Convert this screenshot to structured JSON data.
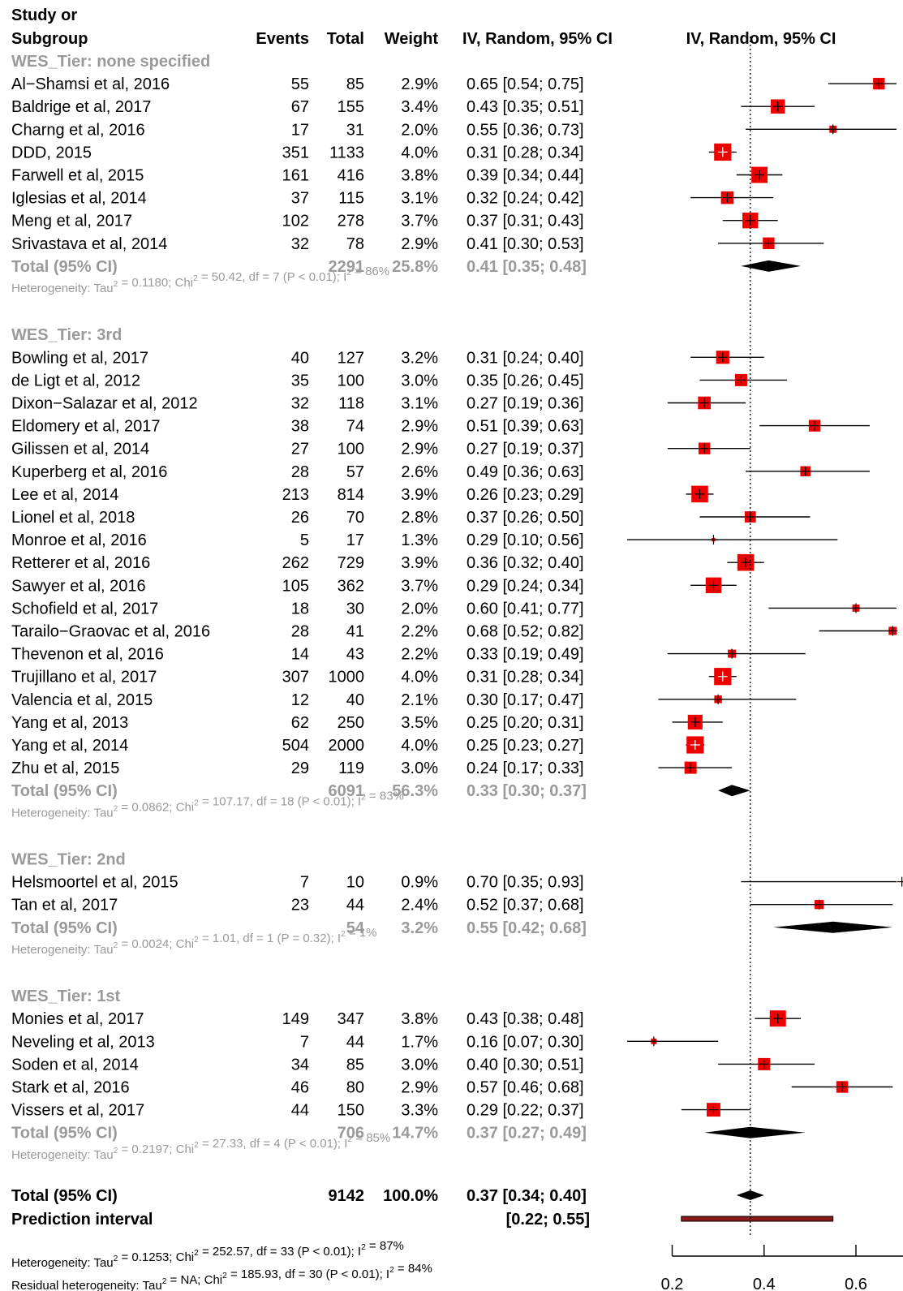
{
  "header": {
    "study_line1": "Study or",
    "study_line2": "Subgroup",
    "events": "Events",
    "total": "Total",
    "weight": "Weight",
    "ci": "IV, Random, 95% CI",
    "plot_ci": "IV, Random, 95% CI"
  },
  "colors": {
    "box": "#ee0000",
    "diamond": "#000000",
    "prediction": "#8b1a1a",
    "gray": "#9a9a9a"
  },
  "chart_data": {
    "type": "forest",
    "xlim": [
      0.1,
      0.85
    ],
    "xticks": [
      0.2,
      0.4,
      0.6,
      0.8
    ],
    "reference_line": 0.37,
    "subgroups": [
      {
        "title": "WES_Tier: none specified",
        "studies": [
          {
            "name": "Al−Shamsi et al, 2016",
            "events": "55",
            "total": "85",
            "weight": "2.9%",
            "ci_text": "0.65 [0.54; 0.75]",
            "est": 0.65,
            "lo": 0.54,
            "hi": 0.75,
            "w": 2.9
          },
          {
            "name": "Baldrige et al, 2017",
            "events": "67",
            "total": "155",
            "weight": "3.4%",
            "ci_text": "0.43 [0.35; 0.51]",
            "est": 0.43,
            "lo": 0.35,
            "hi": 0.51,
            "w": 3.4
          },
          {
            "name": "Charng et al, 2016",
            "events": "17",
            "total": "31",
            "weight": "2.0%",
            "ci_text": "0.55 [0.36; 0.73]",
            "est": 0.55,
            "lo": 0.36,
            "hi": 0.73,
            "w": 2.0
          },
          {
            "name": "DDD, 2015",
            "events": "351",
            "total": "1133",
            "weight": "4.0%",
            "ci_text": "0.31 [0.28; 0.34]",
            "est": 0.31,
            "lo": 0.28,
            "hi": 0.34,
            "w": 4.0
          },
          {
            "name": "Farwell et al, 2015",
            "events": "161",
            "total": "416",
            "weight": "3.8%",
            "ci_text": "0.39 [0.34; 0.44]",
            "est": 0.39,
            "lo": 0.34,
            "hi": 0.44,
            "w": 3.8
          },
          {
            "name": "Iglesias et al, 2014",
            "events": "37",
            "total": "115",
            "weight": "3.1%",
            "ci_text": "0.32 [0.24; 0.42]",
            "est": 0.32,
            "lo": 0.24,
            "hi": 0.42,
            "w": 3.1
          },
          {
            "name": "Meng et al, 2017",
            "events": "102",
            "total": "278",
            "weight": "3.7%",
            "ci_text": "0.37 [0.31; 0.43]",
            "est": 0.37,
            "lo": 0.31,
            "hi": 0.43,
            "w": 3.7
          },
          {
            "name": "Srivastava et al, 2014",
            "events": "32",
            "total": "78",
            "weight": "2.9%",
            "ci_text": "0.41 [0.30; 0.53]",
            "est": 0.41,
            "lo": 0.3,
            "hi": 0.53,
            "w": 2.9
          }
        ],
        "total": {
          "label": "Total (95% CI)",
          "total": "2291",
          "weight": "25.8%",
          "ci_text": "0.41 [0.35; 0.48]",
          "est": 0.41,
          "lo": 0.35,
          "hi": 0.48
        },
        "het": {
          "a": "Heterogeneity: Tau",
          "b": " = 0.1180; Chi",
          "c": " = 50.42, df = 7 (P < 0.01); I",
          "d": " = 86%"
        }
      },
      {
        "title": "WES_Tier: 3rd",
        "studies": [
          {
            "name": "Bowling et al, 2017",
            "events": "40",
            "total": "127",
            "weight": "3.2%",
            "ci_text": "0.31 [0.24; 0.40]",
            "est": 0.31,
            "lo": 0.24,
            "hi": 0.4,
            "w": 3.2
          },
          {
            "name": "de Ligt et al, 2012",
            "events": "35",
            "total": "100",
            "weight": "3.0%",
            "ci_text": "0.35 [0.26; 0.45]",
            "est": 0.35,
            "lo": 0.26,
            "hi": 0.45,
            "w": 3.0
          },
          {
            "name": "Dixon−Salazar et al, 2012",
            "events": "32",
            "total": "118",
            "weight": "3.1%",
            "ci_text": "0.27 [0.19; 0.36]",
            "est": 0.27,
            "lo": 0.19,
            "hi": 0.36,
            "w": 3.1
          },
          {
            "name": "Eldomery et al, 2017",
            "events": "38",
            "total": "74",
            "weight": "2.9%",
            "ci_text": "0.51 [0.39; 0.63]",
            "est": 0.51,
            "lo": 0.39,
            "hi": 0.63,
            "w": 2.9
          },
          {
            "name": "Gilissen et al, 2014",
            "events": "27",
            "total": "100",
            "weight": "2.9%",
            "ci_text": "0.27 [0.19; 0.37]",
            "est": 0.27,
            "lo": 0.19,
            "hi": 0.37,
            "w": 2.9
          },
          {
            "name": "Kuperberg et al, 2016",
            "events": "28",
            "total": "57",
            "weight": "2.6%",
            "ci_text": "0.49 [0.36; 0.63]",
            "est": 0.49,
            "lo": 0.36,
            "hi": 0.63,
            "w": 2.6
          },
          {
            "name": "Lee et al, 2014",
            "events": "213",
            "total": "814",
            "weight": "3.9%",
            "ci_text": "0.26 [0.23; 0.29]",
            "est": 0.26,
            "lo": 0.23,
            "hi": 0.29,
            "w": 3.9
          },
          {
            "name": "Lionel et al, 2018",
            "events": "26",
            "total": "70",
            "weight": "2.8%",
            "ci_text": "0.37 [0.26; 0.50]",
            "est": 0.37,
            "lo": 0.26,
            "hi": 0.5,
            "w": 2.8
          },
          {
            "name": "Monroe et al, 2016",
            "events": "5",
            "total": "17",
            "weight": "1.3%",
            "ci_text": "0.29 [0.10; 0.56]",
            "est": 0.29,
            "lo": 0.1,
            "hi": 0.56,
            "w": 1.3
          },
          {
            "name": "Retterer et al, 2016",
            "events": "262",
            "total": "729",
            "weight": "3.9%",
            "ci_text": "0.36 [0.32; 0.40]",
            "est": 0.36,
            "lo": 0.32,
            "hi": 0.4,
            "w": 3.9
          },
          {
            "name": "Sawyer et al, 2016",
            "events": "105",
            "total": "362",
            "weight": "3.7%",
            "ci_text": "0.29 [0.24; 0.34]",
            "est": 0.29,
            "lo": 0.24,
            "hi": 0.34,
            "w": 3.7
          },
          {
            "name": "Schofield et al, 2017",
            "events": "18",
            "total": "30",
            "weight": "2.0%",
            "ci_text": "0.60 [0.41; 0.77]",
            "est": 0.6,
            "lo": 0.41,
            "hi": 0.77,
            "w": 2.0
          },
          {
            "name": "Tarailo−Graovac et al, 2016",
            "events": "28",
            "total": "41",
            "weight": "2.2%",
            "ci_text": "0.68 [0.52; 0.82]",
            "est": 0.68,
            "lo": 0.52,
            "hi": 0.82,
            "w": 2.2
          },
          {
            "name": "Thevenon et al, 2016",
            "events": "14",
            "total": "43",
            "weight": "2.2%",
            "ci_text": "0.33 [0.19; 0.49]",
            "est": 0.33,
            "lo": 0.19,
            "hi": 0.49,
            "w": 2.2
          },
          {
            "name": "Trujillano et al, 2017",
            "events": "307",
            "total": "1000",
            "weight": "4.0%",
            "ci_text": "0.31 [0.28; 0.34]",
            "est": 0.31,
            "lo": 0.28,
            "hi": 0.34,
            "w": 4.0
          },
          {
            "name": "Valencia et al, 2015",
            "events": "12",
            "total": "40",
            "weight": "2.1%",
            "ci_text": "0.30 [0.17; 0.47]",
            "est": 0.3,
            "lo": 0.17,
            "hi": 0.47,
            "w": 2.1
          },
          {
            "name": "Yang et al, 2013",
            "events": "62",
            "total": "250",
            "weight": "3.5%",
            "ci_text": "0.25 [0.20; 0.31]",
            "est": 0.25,
            "lo": 0.2,
            "hi": 0.31,
            "w": 3.5
          },
          {
            "name": "Yang et al, 2014",
            "events": "504",
            "total": "2000",
            "weight": "4.0%",
            "ci_text": "0.25 [0.23; 0.27]",
            "est": 0.25,
            "lo": 0.23,
            "hi": 0.27,
            "w": 4.0
          },
          {
            "name": "Zhu et al, 2015",
            "events": "29",
            "total": "119",
            "weight": "3.0%",
            "ci_text": "0.24 [0.17; 0.33]",
            "est": 0.24,
            "lo": 0.17,
            "hi": 0.33,
            "w": 3.0
          }
        ],
        "total": {
          "label": "Total (95% CI)",
          "total": "6091",
          "weight": "56.3%",
          "ci_text": "0.33 [0.30; 0.37]",
          "est": 0.33,
          "lo": 0.3,
          "hi": 0.37
        },
        "het": {
          "a": "Heterogeneity: Tau",
          "b": " = 0.0862; Chi",
          "c": " = 107.17, df = 18 (P < 0.01); I",
          "d": " = 83%"
        }
      },
      {
        "title": "WES_Tier: 2nd",
        "studies": [
          {
            "name": "Helsmoortel et al, 2015",
            "events": "7",
            "total": "10",
            "weight": "0.9%",
            "ci_text": "0.70 [0.35; 0.93]",
            "est": 0.7,
            "lo": 0.35,
            "hi": 0.93,
            "w": 0.9
          },
          {
            "name": "Tan et al, 2017",
            "events": "23",
            "total": "44",
            "weight": "2.4%",
            "ci_text": "0.52 [0.37; 0.68]",
            "est": 0.52,
            "lo": 0.37,
            "hi": 0.68,
            "w": 2.4
          }
        ],
        "total": {
          "label": "Total (95% CI)",
          "total": "54",
          "weight": "3.2%",
          "ci_text": "0.55 [0.42; 0.68]",
          "est": 0.55,
          "lo": 0.42,
          "hi": 0.68
        },
        "het": {
          "a": "Heterogeneity: Tau",
          "b": " = 0.0024; Chi",
          "c": " = 1.01, df = 1 (P = 0.32); I",
          "d": " = 1%"
        }
      },
      {
        "title": "WES_Tier: 1st",
        "studies": [
          {
            "name": "Monies et al, 2017",
            "events": "149",
            "total": "347",
            "weight": "3.8%",
            "ci_text": "0.43 [0.38; 0.48]",
            "est": 0.43,
            "lo": 0.38,
            "hi": 0.48,
            "w": 3.8
          },
          {
            "name": "Neveling et al, 2013",
            "events": "7",
            "total": "44",
            "weight": "1.7%",
            "ci_text": "0.16 [0.07; 0.30]",
            "est": 0.16,
            "lo": 0.07,
            "hi": 0.3,
            "w": 1.7
          },
          {
            "name": "Soden et al, 2014",
            "events": "34",
            "total": "85",
            "weight": "3.0%",
            "ci_text": "0.40 [0.30; 0.51]",
            "est": 0.4,
            "lo": 0.3,
            "hi": 0.51,
            "w": 3.0
          },
          {
            "name": "Stark et al, 2016",
            "events": "46",
            "total": "80",
            "weight": "2.9%",
            "ci_text": "0.57 [0.46; 0.68]",
            "est": 0.57,
            "lo": 0.46,
            "hi": 0.68,
            "w": 2.9
          },
          {
            "name": "Vissers et al, 2017",
            "events": "44",
            "total": "150",
            "weight": "3.3%",
            "ci_text": "0.29 [0.22; 0.37]",
            "est": 0.29,
            "lo": 0.22,
            "hi": 0.37,
            "w": 3.3
          }
        ],
        "total": {
          "label": "Total (95% CI)",
          "total": "706",
          "weight": "14.7%",
          "ci_text": "0.37 [0.27; 0.49]",
          "est": 0.37,
          "lo": 0.27,
          "hi": 0.49
        },
        "het": {
          "a": "Heterogeneity: Tau",
          "b": " = 0.2197; Chi",
          "c": " = 27.33, df = 4 (P < 0.01); I",
          "d": " = 85%"
        }
      }
    ],
    "overall": {
      "label": "Total (95% CI)",
      "total": "9142",
      "weight": "100.0%",
      "ci_text": "0.37 [0.34; 0.40]",
      "est": 0.37,
      "lo": 0.34,
      "hi": 0.4
    },
    "prediction": {
      "label": "Prediction interval",
      "ci_text": "[0.22; 0.55]",
      "lo": 0.22,
      "hi": 0.55
    },
    "overall_het": {
      "a": "Heterogeneity: Tau",
      "b": " = 0.1253; Chi",
      "c": " = 252.57, df = 33 (P < 0.01); I",
      "d": " = 87%"
    },
    "residual_het": {
      "a": "Residual heterogeneity: Tau",
      "b": " = NA; Chi",
      "c": " = 185.93, df = 30 (P < 0.01); I",
      "d": " = 84%"
    },
    "sup": "2"
  }
}
